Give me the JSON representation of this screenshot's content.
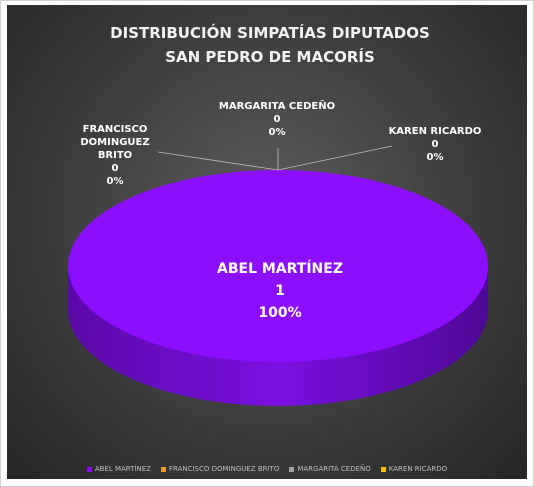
{
  "chart_data": {
    "type": "pie",
    "title_lines": [
      "DISTRIBUCIÓN SIMPATÍAS DIPUTADOS",
      "SAN PEDRO DE MACORÍS"
    ],
    "categories": [
      "ABEL MARTÍNEZ",
      "FRANCISCO DOMINGUEZ BRITO",
      "MARGARITA CEDEÑO",
      "KAREN RICARDO"
    ],
    "values": [
      1,
      0,
      0,
      0
    ],
    "percent_labels": [
      "100%",
      "0%",
      "0%",
      "0%"
    ],
    "colors": [
      "#8c0eff",
      "#f59a23",
      "#a5a5a5",
      "#ffc000"
    ],
    "legend": "bottom",
    "three_d": true
  }
}
